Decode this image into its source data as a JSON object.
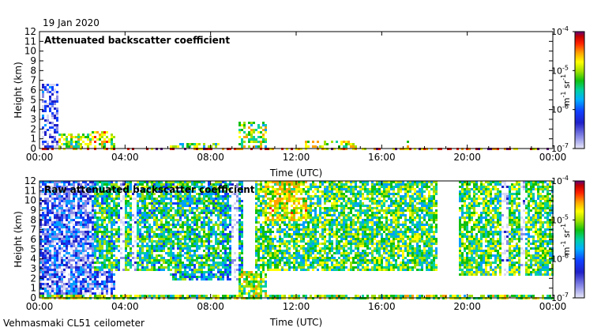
{
  "header": {
    "date": "19 Jan 2020"
  },
  "footer": {
    "instrument": "Vehmasmaki CL51 ceilometer"
  },
  "colors": {
    "colormap": [
      "#d8d8f4",
      "#8a8ae6",
      "#2020c8",
      "#1040ff",
      "#00a0ff",
      "#00d0a0",
      "#10c010",
      "#a0e000",
      "#ffff00",
      "#ffa000",
      "#ff2000",
      "#c00000",
      "#600080"
    ],
    "background": "#ffffff"
  },
  "chart_data": [
    {
      "type": "heatmap",
      "title": "Attenuated backscatter coefficient",
      "xlabel": "Time (UTC)",
      "ylabel": "Height (km)",
      "x_ticks": [
        "00:00",
        "04:00",
        "08:00",
        "12:00",
        "16:00",
        "20:00",
        "00:00"
      ],
      "x_range_hours": [
        0,
        24
      ],
      "y_ticks": [
        "0",
        "1",
        "2",
        "3",
        "4",
        "5",
        "6",
        "7",
        "8",
        "9",
        "10",
        "11",
        "12"
      ],
      "ylim": [
        0,
        12
      ],
      "colorbar": {
        "label": "m",
        "exp1": "-1",
        "mid": " sr",
        "exp2": "-1",
        "scale": "log",
        "range": [
          1e-07,
          0.0001
        ],
        "ticks": [
          {
            "base": "10",
            "exp": "-4",
            "v": 0.0001
          },
          {
            "base": "10",
            "exp": "-5",
            "v": 1e-05
          },
          {
            "base": "10",
            "exp": "-6",
            "v": 1e-06
          },
          {
            "base": "10",
            "exp": "-7",
            "v": 1e-07
          }
        ]
      },
      "regions": [
        {
          "t0": 0.0,
          "t1": 24.0,
          "h0": 0.0,
          "h1": 0.15,
          "level": 0.78
        },
        {
          "t0": 0.1,
          "t1": 0.8,
          "h0": 0.2,
          "h1": 6.8,
          "level": 0.15
        },
        {
          "t0": 0.8,
          "t1": 3.5,
          "h0": 0.05,
          "h1": 1.6,
          "level": 0.55
        },
        {
          "t0": 2.3,
          "t1": 3.3,
          "h0": 0.1,
          "h1": 1.9,
          "level": 0.62
        },
        {
          "t0": 4.9,
          "t1": 5.0,
          "h0": 2.0,
          "h1": 2.3,
          "level": 0.7
        },
        {
          "t0": 6.0,
          "t1": 8.5,
          "h0": 0.05,
          "h1": 0.7,
          "level": 0.5
        },
        {
          "t0": 9.3,
          "t1": 10.6,
          "h0": 0.1,
          "h1": 2.8,
          "level": 0.55
        },
        {
          "t0": 12.3,
          "t1": 14.8,
          "h0": 0.05,
          "h1": 1.0,
          "level": 0.6
        },
        {
          "t0": 17.0,
          "t1": 17.2,
          "h0": 0.2,
          "h1": 0.9,
          "level": 0.6
        },
        {
          "t0": 19.5,
          "t1": 24.0,
          "h0": 0.0,
          "h1": 0.3,
          "level": 0.45
        }
      ]
    },
    {
      "type": "heatmap",
      "title": "Raw attenuated backscatter coefficient",
      "xlabel": "Time (UTC)",
      "ylabel": "Height (km)",
      "x_ticks": [
        "00:00",
        "04:00",
        "08:00",
        "12:00",
        "16:00",
        "20:00",
        "00:00"
      ],
      "x_range_hours": [
        0,
        24
      ],
      "y_ticks": [
        "0",
        "1",
        "2",
        "3",
        "4",
        "5",
        "6",
        "7",
        "8",
        "9",
        "10",
        "11",
        "12"
      ],
      "ylim": [
        0,
        12
      ],
      "colorbar": {
        "label": "m",
        "exp1": "-1",
        "mid": " sr",
        "exp2": "-1",
        "scale": "log",
        "range": [
          1e-07,
          0.0001
        ],
        "ticks": [
          {
            "base": "10",
            "exp": "-4",
            "v": 0.0001
          },
          {
            "base": "10",
            "exp": "-5",
            "v": 1e-05
          },
          {
            "base": "10",
            "exp": "-6",
            "v": 1e-06
          },
          {
            "base": "10",
            "exp": "-7",
            "v": 1e-07
          }
        ]
      },
      "regions": [
        {
          "t0": 0.0,
          "t1": 3.5,
          "h0": 0.3,
          "h1": 12.0,
          "level": 0.2
        },
        {
          "t0": 2.5,
          "t1": 8.5,
          "h0": 3.0,
          "h1": 12.0,
          "level": 0.45
        },
        {
          "t0": 6.0,
          "t1": 9.5,
          "h0": 2.0,
          "h1": 12.0,
          "level": 0.4
        },
        {
          "t0": 10.0,
          "t1": 18.5,
          "h0": 3.0,
          "h1": 12.0,
          "level": 0.5
        },
        {
          "t0": 10.5,
          "t1": 12.5,
          "h0": 8.0,
          "h1": 12.0,
          "level": 0.6
        },
        {
          "t0": 19.5,
          "t1": 24.0,
          "h0": 2.5,
          "h1": 12.0,
          "level": 0.5
        },
        {
          "t0": 0.0,
          "t1": 24.0,
          "h0": 0.0,
          "h1": 0.5,
          "level": 0.55
        },
        {
          "t0": 9.3,
          "t1": 10.6,
          "h0": 0.1,
          "h1": 2.8,
          "level": 0.55
        }
      ],
      "gaps": [
        {
          "t0": 3.7,
          "t1": 3.9
        },
        {
          "t0": 4.3,
          "t1": 4.5
        },
        {
          "t0": 8.9,
          "t1": 9.3
        },
        {
          "t0": 18.5,
          "t1": 19.5
        },
        {
          "t0": 21.6,
          "t1": 21.9
        },
        {
          "t0": 22.4,
          "t1": 22.6
        }
      ]
    }
  ]
}
